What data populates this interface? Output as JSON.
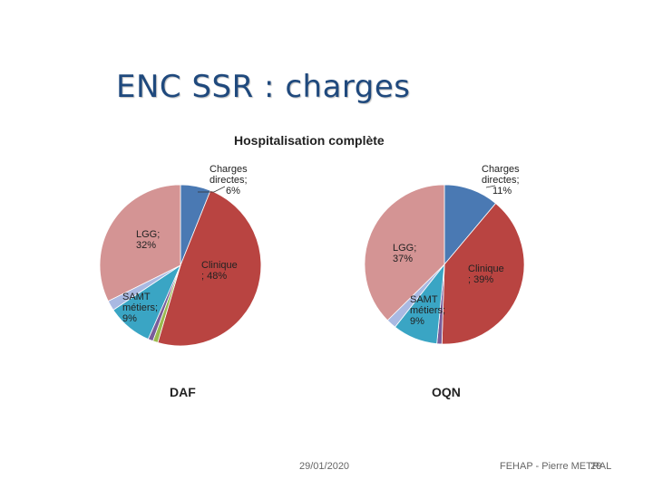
{
  "slide": {
    "title": "ENC SSR : charges",
    "footer_date": "29/01/2020",
    "footer_author": "FEHAP - Pierre METRAL",
    "footer_page": "29"
  },
  "chart_data": [
    {
      "type": "pie",
      "title": "Hospitalisation complète",
      "name": "DAF",
      "slices": [
        {
          "label": "Charges directes",
          "value": 6,
          "color": "#4a79b3",
          "display": [
            "Charges",
            "directes;",
            "6%"
          ]
        },
        {
          "label": "Clinique",
          "value": 48,
          "color": "#b94441",
          "display": [
            "Clinique",
            "; 48%"
          ]
        },
        {
          "label": "",
          "value": 1,
          "color": "#9aba4f",
          "display": []
        },
        {
          "label": "",
          "value": 1,
          "color": "#7a5d9a",
          "display": []
        },
        {
          "label": "SAMT métiers",
          "value": 9,
          "color": "#3aa5c4",
          "display": [
            "SAMT",
            "métiers;",
            "9%"
          ]
        },
        {
          "label": "",
          "value": 2,
          "color": "#a9b9e2",
          "display": []
        },
        {
          "label": "LGG",
          "value": 32,
          "color": "#d49494",
          "display": [
            "LGG;",
            "32%"
          ]
        }
      ]
    },
    {
      "type": "pie",
      "title": "Hospitalisation complète",
      "name": "OQN",
      "slices": [
        {
          "label": "Charges directes",
          "value": 11,
          "color": "#4a79b3",
          "display": [
            "Charges",
            "directes;",
            "11%"
          ]
        },
        {
          "label": "Clinique",
          "value": 39,
          "color": "#b94441",
          "display": [
            "Clinique",
            "; 39%"
          ]
        },
        {
          "label": "",
          "value": 1,
          "color": "#7a5d9a",
          "display": []
        },
        {
          "label": "SAMT métiers",
          "value": 9,
          "color": "#3aa5c4",
          "display": [
            "SAMT",
            "métiers;",
            "9%"
          ]
        },
        {
          "label": "",
          "value": 2,
          "color": "#a9b9e2",
          "display": []
        },
        {
          "label": "LGG",
          "value": 37,
          "color": "#d49494",
          "display": [
            "LGG;",
            "37%"
          ]
        }
      ]
    }
  ]
}
